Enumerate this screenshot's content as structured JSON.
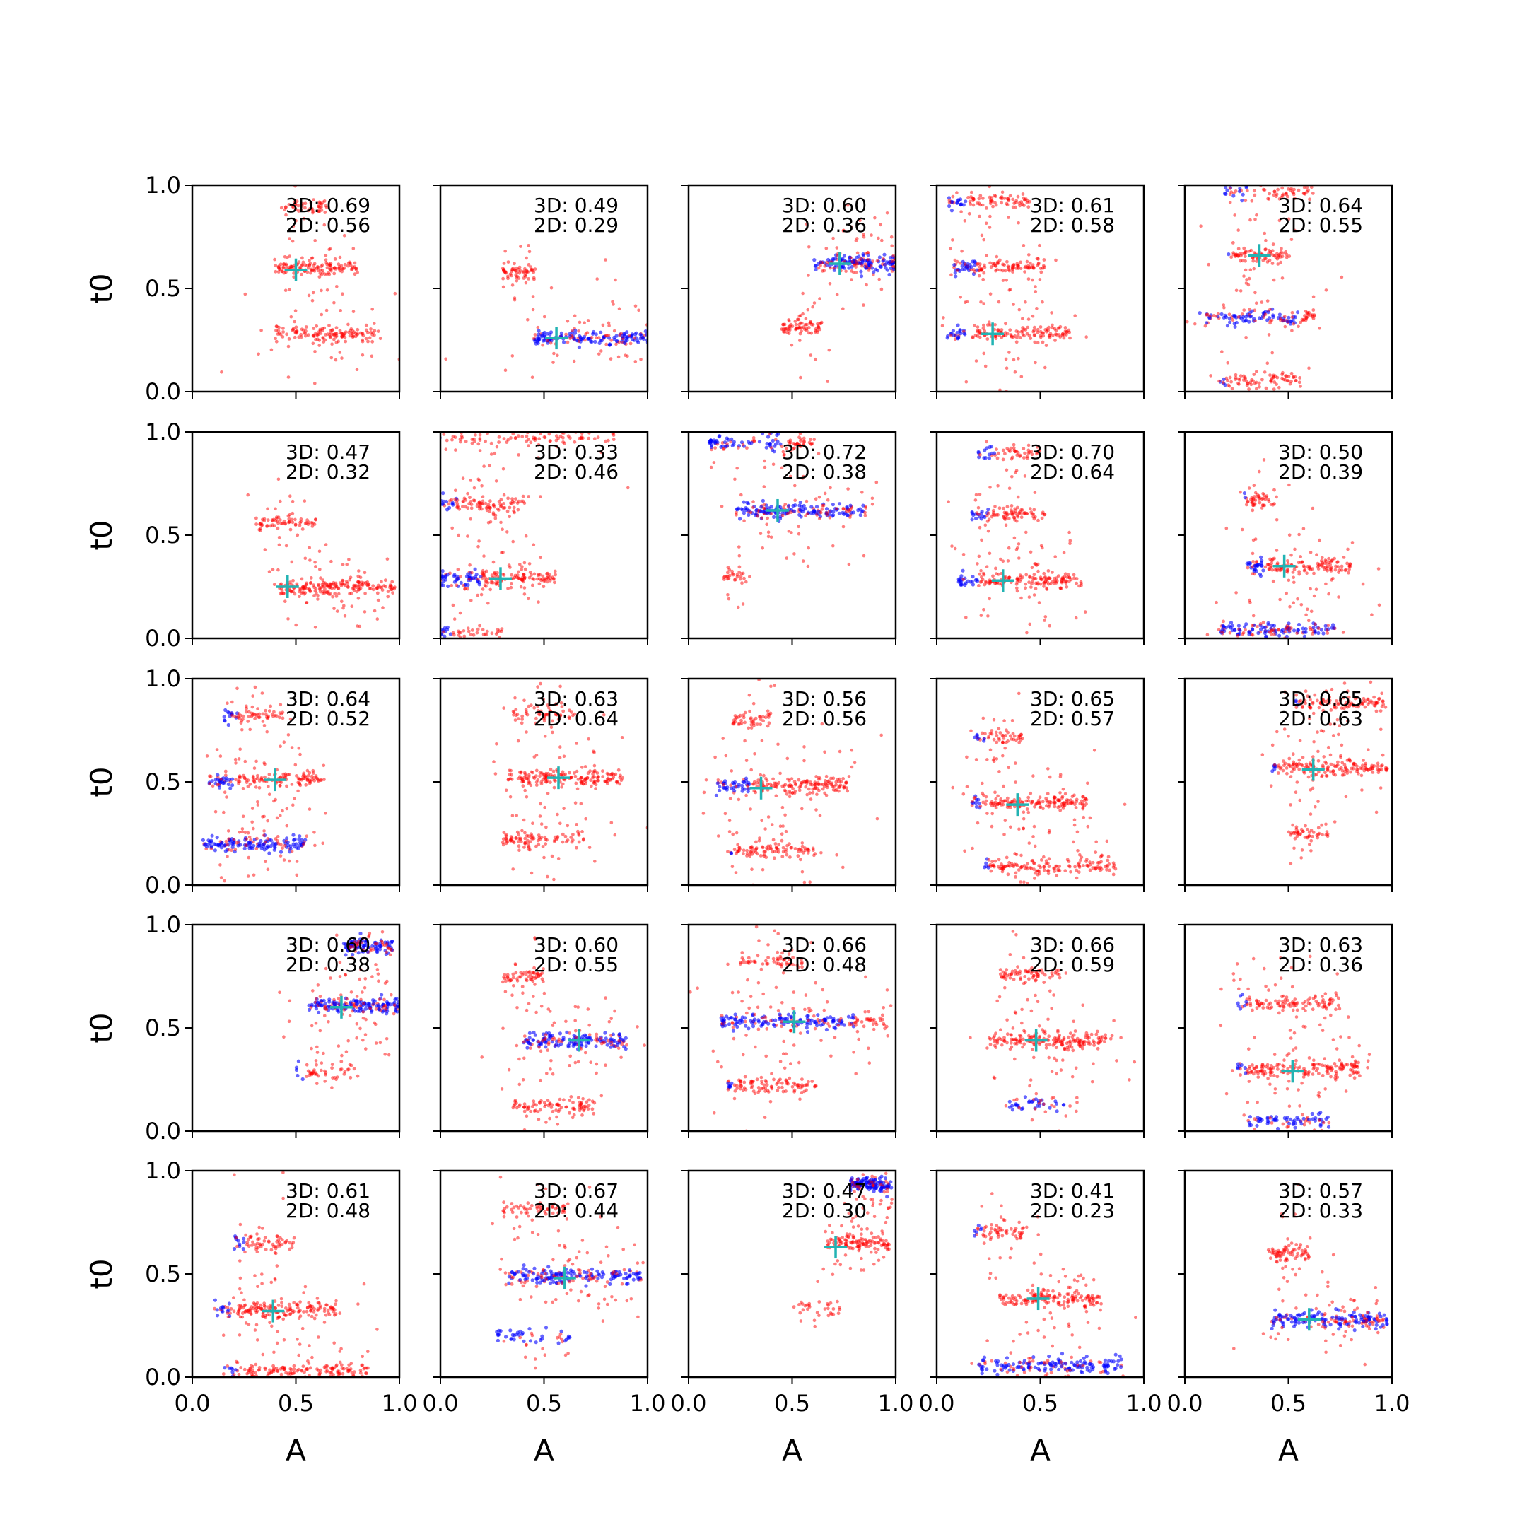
{
  "chart_data": {
    "type": "scatter",
    "grid": false,
    "layout": {
      "rows": 5,
      "cols": 5
    },
    "xlabel": "A",
    "ylabel": "t0",
    "xlim": [
      0,
      1
    ],
    "ylim": [
      0,
      1
    ],
    "xticks": [
      "0.0",
      "0.5",
      "1.0"
    ],
    "yticks": [
      "0.0",
      "0.5",
      "1.0"
    ],
    "colors": {
      "red_points": "#ff0000",
      "blue_points": "#0000ff",
      "marker": "#22b3b3",
      "axis": "#000000"
    },
    "panels": [
      {
        "annotation_3d": "3D: 0.69",
        "annotation_2d": "2D: 0.56",
        "marker": [
          0.5,
          0.59
        ],
        "clusters": [
          {
            "t0": 0.9,
            "a_center": 0.55,
            "a_spread": 0.1,
            "blue_start": 0.42,
            "n": 40
          },
          {
            "t0": 0.6,
            "a_center": 0.6,
            "a_spread": 0.2,
            "blue_start": 0.36,
            "n": 110
          },
          {
            "t0": 0.28,
            "a_center": 0.65,
            "a_spread": 0.25,
            "blue_start": 0.36,
            "n": 120
          }
        ]
      },
      {
        "annotation_3d": "3D: 0.49",
        "annotation_2d": "2D: 0.29",
        "marker": [
          0.56,
          0.26
        ],
        "clusters": [
          {
            "t0": 0.58,
            "a_center": 0.38,
            "a_spread": 0.08,
            "blue_start": 0.22,
            "n": 50
          },
          {
            "t0": 0.26,
            "a_center": 0.75,
            "a_spread": 0.3,
            "blue_start": 1.1,
            "n": 170
          }
        ]
      },
      {
        "annotation_3d": "3D: 0.60",
        "annotation_2d": "2D: 0.36",
        "marker": [
          0.73,
          0.62
        ],
        "clusters": [
          {
            "t0": 0.62,
            "a_center": 0.8,
            "a_spread": 0.2,
            "blue_start": 1.1,
            "n": 160
          },
          {
            "t0": 0.31,
            "a_center": 0.55,
            "a_spread": 0.1,
            "blue_start": 0.4,
            "n": 60
          }
        ]
      },
      {
        "annotation_3d": "3D: 0.61",
        "annotation_2d": "2D: 0.58",
        "marker": [
          0.27,
          0.28
        ],
        "clusters": [
          {
            "t0": 0.92,
            "a_center": 0.25,
            "a_spread": 0.2,
            "blue_start": 0.15,
            "n": 80
          },
          {
            "t0": 0.6,
            "a_center": 0.3,
            "a_spread": 0.22,
            "blue_start": 0.2,
            "n": 110
          },
          {
            "t0": 0.28,
            "a_center": 0.35,
            "a_spread": 0.3,
            "blue_start": 0.15,
            "n": 130
          }
        ]
      },
      {
        "annotation_3d": "3D: 0.64",
        "annotation_2d": "2D: 0.55",
        "marker": [
          0.36,
          0.66
        ],
        "clusters": [
          {
            "t0": 0.97,
            "a_center": 0.4,
            "a_spread": 0.22,
            "blue_start": 0.3,
            "n": 60
          },
          {
            "t0": 0.66,
            "a_center": 0.36,
            "a_spread": 0.15,
            "blue_start": 0.22,
            "n": 70
          },
          {
            "t0": 0.36,
            "a_center": 0.35,
            "a_spread": 0.28,
            "blue_start": 0.55,
            "n": 110
          },
          {
            "t0": 0.05,
            "a_center": 0.36,
            "a_spread": 0.2,
            "blue_start": 0.2,
            "n": 70
          }
        ]
      },
      {
        "annotation_3d": "3D: 0.47",
        "annotation_2d": "2D: 0.32",
        "marker": [
          0.46,
          0.25
        ],
        "clusters": [
          {
            "t0": 0.56,
            "a_center": 0.45,
            "a_spread": 0.15,
            "blue_start": 0.3,
            "n": 60
          },
          {
            "t0": 0.25,
            "a_center": 0.7,
            "a_spread": 0.28,
            "blue_start": 0.3,
            "n": 170
          }
        ]
      },
      {
        "annotation_3d": "3D: 0.33",
        "annotation_2d": "2D: 0.46",
        "marker": [
          0.29,
          0.29
        ],
        "clusters": [
          {
            "t0": 0.97,
            "a_center": 0.4,
            "a_spread": 0.45,
            "blue_start": 0.0,
            "n": 90
          },
          {
            "t0": 0.65,
            "a_center": 0.2,
            "a_spread": 0.2,
            "blue_start": 0.08,
            "n": 90
          },
          {
            "t0": 0.29,
            "a_center": 0.28,
            "a_spread": 0.28,
            "blue_start": 0.2,
            "n": 150
          },
          {
            "t0": 0.03,
            "a_center": 0.15,
            "a_spread": 0.15,
            "blue_start": 0.05,
            "n": 40
          }
        ]
      },
      {
        "annotation_3d": "3D: 0.72",
        "annotation_2d": "2D: 0.38",
        "marker": [
          0.43,
          0.62
        ],
        "clusters": [
          {
            "t0": 0.95,
            "a_center": 0.35,
            "a_spread": 0.25,
            "blue_start": 0.45,
            "n": 100
          },
          {
            "t0": 0.62,
            "a_center": 0.55,
            "a_spread": 0.32,
            "blue_start": 0.85,
            "n": 170
          },
          {
            "t0": 0.3,
            "a_center": 0.22,
            "a_spread": 0.06,
            "blue_start": 0.1,
            "n": 25
          }
        ]
      },
      {
        "annotation_3d": "3D: 0.70",
        "annotation_2d": "2D: 0.64",
        "marker": [
          0.32,
          0.28
        ],
        "clusters": [
          {
            "t0": 0.9,
            "a_center": 0.35,
            "a_spread": 0.15,
            "blue_start": 0.28,
            "n": 50
          },
          {
            "t0": 0.6,
            "a_center": 0.35,
            "a_spread": 0.18,
            "blue_start": 0.25,
            "n": 80
          },
          {
            "t0": 0.28,
            "a_center": 0.4,
            "a_spread": 0.3,
            "blue_start": 0.2,
            "n": 150
          }
        ]
      },
      {
        "annotation_3d": "3D: 0.50",
        "annotation_2d": "2D: 0.39",
        "marker": [
          0.48,
          0.35
        ],
        "clusters": [
          {
            "t0": 0.67,
            "a_center": 0.36,
            "a_spread": 0.08,
            "blue_start": 0.3,
            "n": 40
          },
          {
            "t0": 0.35,
            "a_center": 0.55,
            "a_spread": 0.25,
            "blue_start": 0.38,
            "n": 130
          },
          {
            "t0": 0.04,
            "a_center": 0.45,
            "a_spread": 0.28,
            "blue_start": 1.1,
            "n": 130
          }
        ]
      },
      {
        "annotation_3d": "3D: 0.64",
        "annotation_2d": "2D: 0.52",
        "marker": [
          0.4,
          0.51
        ],
        "clusters": [
          {
            "t0": 0.82,
            "a_center": 0.3,
            "a_spread": 0.15,
            "blue_start": 0.22,
            "n": 60
          },
          {
            "t0": 0.51,
            "a_center": 0.35,
            "a_spread": 0.28,
            "blue_start": 0.2,
            "n": 130
          },
          {
            "t0": 0.2,
            "a_center": 0.3,
            "a_spread": 0.25,
            "blue_start": 1.1,
            "n": 140
          }
        ]
      },
      {
        "annotation_3d": "3D: 0.63",
        "annotation_2d": "2D: 0.64",
        "marker": [
          0.57,
          0.52
        ],
        "clusters": [
          {
            "t0": 0.83,
            "a_center": 0.5,
            "a_spread": 0.15,
            "blue_start": 0.32,
            "n": 50
          },
          {
            "t0": 0.52,
            "a_center": 0.6,
            "a_spread": 0.28,
            "blue_start": 0.3,
            "n": 150
          },
          {
            "t0": 0.22,
            "a_center": 0.5,
            "a_spread": 0.2,
            "blue_start": 0.3,
            "n": 80
          }
        ]
      },
      {
        "annotation_3d": "3D: 0.56",
        "annotation_2d": "2D: 0.56",
        "marker": [
          0.35,
          0.47
        ],
        "clusters": [
          {
            "t0": 0.8,
            "a_center": 0.3,
            "a_spread": 0.1,
            "blue_start": 0.2,
            "n": 40
          },
          {
            "t0": 0.48,
            "a_center": 0.45,
            "a_spread": 0.32,
            "blue_start": 0.3,
            "n": 170
          },
          {
            "t0": 0.17,
            "a_center": 0.4,
            "a_spread": 0.22,
            "blue_start": 0.22,
            "n": 90
          }
        ]
      },
      {
        "annotation_3d": "3D: 0.65",
        "annotation_2d": "2D: 0.57",
        "marker": [
          0.39,
          0.39
        ],
        "clusters": [
          {
            "t0": 0.72,
            "a_center": 0.3,
            "a_spread": 0.12,
            "blue_start": 0.25,
            "n": 50
          },
          {
            "t0": 0.4,
            "a_center": 0.45,
            "a_spread": 0.28,
            "blue_start": 0.22,
            "n": 150
          },
          {
            "t0": 0.09,
            "a_center": 0.55,
            "a_spread": 0.32,
            "blue_start": 0.25,
            "n": 130
          }
        ]
      },
      {
        "annotation_3d": "3D: 0.65",
        "annotation_2d": "2D: 0.63",
        "marker": [
          0.62,
          0.56
        ],
        "clusters": [
          {
            "t0": 0.88,
            "a_center": 0.75,
            "a_spread": 0.22,
            "blue_start": 0.55,
            "n": 90
          },
          {
            "t0": 0.57,
            "a_center": 0.7,
            "a_spread": 0.28,
            "blue_start": 0.45,
            "n": 140
          },
          {
            "t0": 0.25,
            "a_center": 0.6,
            "a_spread": 0.1,
            "blue_start": 0.5,
            "n": 40
          }
        ]
      },
      {
        "annotation_3d": "3D: 0.60",
        "annotation_2d": "2D: 0.38",
        "marker": [
          0.72,
          0.6
        ],
        "clusters": [
          {
            "t0": 0.9,
            "a_center": 0.85,
            "a_spread": 0.12,
            "blue_start": 1.1,
            "n": 100
          },
          {
            "t0": 0.61,
            "a_center": 0.78,
            "a_spread": 0.22,
            "blue_start": 1.1,
            "n": 160
          },
          {
            "t0": 0.29,
            "a_center": 0.65,
            "a_spread": 0.15,
            "blue_start": 0.55,
            "n": 40
          }
        ]
      },
      {
        "annotation_3d": "3D: 0.60",
        "annotation_2d": "2D: 0.55",
        "marker": [
          0.67,
          0.44
        ],
        "clusters": [
          {
            "t0": 0.75,
            "a_center": 0.4,
            "a_spread": 0.1,
            "blue_start": 0.28,
            "n": 50
          },
          {
            "t0": 0.44,
            "a_center": 0.65,
            "a_spread": 0.25,
            "blue_start": 1.1,
            "n": 150
          },
          {
            "t0": 0.12,
            "a_center": 0.55,
            "a_spread": 0.2,
            "blue_start": 0.32,
            "n": 80
          }
        ]
      },
      {
        "annotation_3d": "3D: 0.66",
        "annotation_2d": "2D: 0.48",
        "marker": [
          0.51,
          0.53
        ],
        "clusters": [
          {
            "t0": 0.82,
            "a_center": 0.4,
            "a_spread": 0.15,
            "blue_start": 0.25,
            "n": 50
          },
          {
            "t0": 0.53,
            "a_center": 0.55,
            "a_spread": 0.4,
            "blue_start": 0.8,
            "n": 180
          },
          {
            "t0": 0.22,
            "a_center": 0.4,
            "a_spread": 0.22,
            "blue_start": 0.22,
            "n": 90
          }
        ]
      },
      {
        "annotation_3d": "3D: 0.66",
        "annotation_2d": "2D: 0.59",
        "marker": [
          0.48,
          0.44
        ],
        "clusters": [
          {
            "t0": 0.76,
            "a_center": 0.45,
            "a_spread": 0.15,
            "blue_start": 0.28,
            "n": 60
          },
          {
            "t0": 0.44,
            "a_center": 0.55,
            "a_spread": 0.3,
            "blue_start": 0.22,
            "n": 160
          },
          {
            "t0": 0.13,
            "a_center": 0.5,
            "a_spread": 0.15,
            "blue_start": 1.1,
            "n": 40
          }
        ]
      },
      {
        "annotation_3d": "3D: 0.63",
        "annotation_2d": "2D: 0.36",
        "marker": [
          0.52,
          0.29
        ],
        "clusters": [
          {
            "t0": 0.62,
            "a_center": 0.5,
            "a_spread": 0.25,
            "blue_start": 0.3,
            "n": 100
          },
          {
            "t0": 0.3,
            "a_center": 0.55,
            "a_spread": 0.3,
            "blue_start": 0.3,
            "n": 150
          },
          {
            "t0": 0.05,
            "a_center": 0.5,
            "a_spread": 0.2,
            "blue_start": 1.1,
            "n": 70
          }
        ]
      },
      {
        "annotation_3d": "3D: 0.61",
        "annotation_2d": "2D: 0.48",
        "marker": [
          0.39,
          0.32
        ],
        "clusters": [
          {
            "t0": 0.65,
            "a_center": 0.35,
            "a_spread": 0.15,
            "blue_start": 0.25,
            "n": 60
          },
          {
            "t0": 0.33,
            "a_center": 0.4,
            "a_spread": 0.3,
            "blue_start": 0.18,
            "n": 150
          },
          {
            "t0": 0.03,
            "a_center": 0.5,
            "a_spread": 0.35,
            "blue_start": 0.22,
            "n": 140
          }
        ]
      },
      {
        "annotation_3d": "3D: 0.67",
        "annotation_2d": "2D: 0.44",
        "marker": [
          0.6,
          0.48
        ],
        "clusters": [
          {
            "t0": 0.81,
            "a_center": 0.45,
            "a_spread": 0.15,
            "blue_start": 0.3,
            "n": 50
          },
          {
            "t0": 0.49,
            "a_center": 0.65,
            "a_spread": 0.32,
            "blue_start": 1.1,
            "n": 180
          },
          {
            "t0": 0.2,
            "a_center": 0.45,
            "a_spread": 0.18,
            "blue_start": 1.1,
            "n": 40
          }
        ]
      },
      {
        "annotation_3d": "3D: 0.47",
        "annotation_2d": "2D: 0.30",
        "marker": [
          0.71,
          0.63
        ],
        "clusters": [
          {
            "t0": 0.93,
            "a_center": 0.88,
            "a_spread": 0.1,
            "blue_start": 1.1,
            "n": 130
          },
          {
            "t0": 0.65,
            "a_center": 0.82,
            "a_spread": 0.15,
            "blue_start": 0.6,
            "n": 100
          },
          {
            "t0": 0.33,
            "a_center": 0.62,
            "a_spread": 0.12,
            "blue_start": 0.4,
            "n": 25
          }
        ]
      },
      {
        "annotation_3d": "3D: 0.41",
        "annotation_2d": "2D: 0.23",
        "marker": [
          0.49,
          0.38
        ],
        "clusters": [
          {
            "t0": 0.7,
            "a_center": 0.3,
            "a_spread": 0.12,
            "blue_start": 0.22,
            "n": 50
          },
          {
            "t0": 0.38,
            "a_center": 0.55,
            "a_spread": 0.25,
            "blue_start": 0.25,
            "n": 130
          },
          {
            "t0": 0.06,
            "a_center": 0.55,
            "a_spread": 0.35,
            "blue_start": 1.1,
            "n": 150
          }
        ]
      },
      {
        "annotation_3d": "3D: 0.57",
        "annotation_2d": "2D: 0.33",
        "marker": [
          0.6,
          0.28
        ],
        "clusters": [
          {
            "t0": 0.6,
            "a_center": 0.5,
            "a_spread": 0.1,
            "blue_start": 0.35,
            "n": 60
          },
          {
            "t0": 0.28,
            "a_center": 0.7,
            "a_spread": 0.28,
            "blue_start": 1.1,
            "n": 170
          }
        ]
      }
    ]
  }
}
